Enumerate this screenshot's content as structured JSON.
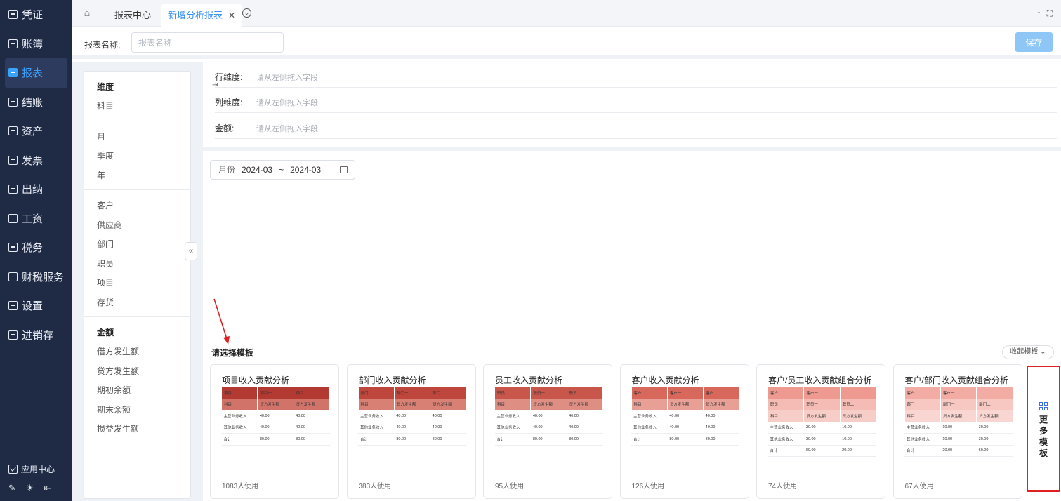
{
  "sidebar": {
    "items": [
      {
        "label": "凭证",
        "icon": "voucher-icon"
      },
      {
        "label": "账簿",
        "icon": "ledger-icon"
      },
      {
        "label": "报表",
        "icon": "report-icon",
        "active": true
      },
      {
        "label": "结账",
        "icon": "closing-icon"
      },
      {
        "label": "资产",
        "icon": "asset-icon"
      },
      {
        "label": "发票",
        "icon": "invoice-icon"
      },
      {
        "label": "出纳",
        "icon": "cashier-icon"
      },
      {
        "label": "工资",
        "icon": "salary-icon"
      },
      {
        "label": "税务",
        "icon": "tax-icon"
      },
      {
        "label": "财税服务",
        "icon": "finance-service-icon"
      },
      {
        "label": "设置",
        "icon": "settings-icon"
      },
      {
        "label": "进销存",
        "icon": "inventory-icon"
      }
    ],
    "app_center": "应用中心"
  },
  "tabs": [
    {
      "label": "报表中心"
    },
    {
      "label": "新增分析报表",
      "active": true
    }
  ],
  "report_name": {
    "label": "报表名称:",
    "placeholder": "报表名称"
  },
  "save_label": "保存",
  "field_panel": {
    "dim_head": "维度",
    "dim_items": [
      "科目"
    ],
    "time_items": [
      "月",
      "季度",
      "年"
    ],
    "aux_items": [
      "客户",
      "供应商",
      "部门",
      "职员",
      "项目",
      "存货"
    ],
    "amount_head": "金额",
    "amount_items": [
      "借方发生额",
      "贷方发生额",
      "期初余额",
      "期末余额",
      "损益发生额"
    ]
  },
  "dimensions": {
    "row_label": "行维度:",
    "col_label": "列维度:",
    "amount_label": "金额:",
    "hint": "请从左侧拖入字段"
  },
  "date_filter": {
    "label": "月份",
    "start": "2024-03",
    "sep": "~",
    "end": "2024-03"
  },
  "templates": {
    "title": "请选择模板",
    "collapse_label": "收起模板",
    "more_label": "更多模板",
    "cards": [
      {
        "title": "项目收入贡献分析",
        "usage": "1083人使用",
        "header": [
          [
            "项目",
            "项目一",
            "项目二"
          ],
          [
            "科目",
            "贷方发生额",
            "贷方发生额"
          ]
        ],
        "rows": [
          [
            "主营业务收入",
            "40.00",
            "40.00"
          ],
          [
            "其他业务收入",
            "40.00",
            "40.00"
          ],
          [
            "合计",
            "80.00",
            "80.00"
          ]
        ],
        "colors": [
          "#b33a32",
          "#d2736a"
        ]
      },
      {
        "title": "部门收入贡献分析",
        "usage": "383人使用",
        "header": [
          [
            "部门",
            "部门一",
            "部门二"
          ],
          [
            "科目",
            "贷方发生额",
            "贷方发生额"
          ]
        ],
        "rows": [
          [
            "主营业务收入",
            "40.00",
            "40.00"
          ],
          [
            "其他业务收入",
            "40.00",
            "40.00"
          ],
          [
            "合计",
            "80.00",
            "80.00"
          ]
        ],
        "colors": [
          "#bf463c",
          "#d98075"
        ]
      },
      {
        "title": "员工收入贡献分析",
        "usage": "95人使用",
        "header": [
          [
            "职员",
            "职员一",
            "职员二"
          ],
          [
            "科目",
            "贷方发生额",
            "贷方发生额"
          ]
        ],
        "rows": [
          [
            "主营业务收入",
            "40.00",
            "40.00"
          ],
          [
            "其他业务收入",
            "40.00",
            "40.00"
          ],
          [
            "合计",
            "80.00",
            "80.00"
          ]
        ],
        "colors": [
          "#c9564a",
          "#de8e83"
        ]
      },
      {
        "title": "客户收入贡献分析",
        "usage": "126人使用",
        "header": [
          [
            "客户",
            "客户一",
            "客户二"
          ],
          [
            "科目",
            "贷方发生额",
            "贷方发生额"
          ]
        ],
        "rows": [
          [
            "主营业务收入",
            "40.00",
            "40.00"
          ],
          [
            "其他业务收入",
            "40.00",
            "40.00"
          ],
          [
            "合计",
            "80.00",
            "80.00"
          ]
        ],
        "colors": [
          "#d8685c",
          "#e8a096"
        ]
      },
      {
        "title": "客户/员工收入贡献组合分析",
        "usage": "74人使用",
        "header": [
          [
            "客户",
            "客户一",
            ""
          ],
          [
            "职员",
            "职员一",
            "职员二"
          ],
          [
            "科目",
            "贷方发生额",
            "贷方发生额"
          ]
        ],
        "rows": [
          [
            "主营业务收入",
            "30.00",
            "10.00"
          ],
          [
            "其他业务收入",
            "30.00",
            "10.00"
          ],
          [
            "合计",
            "60.00",
            "20.00"
          ]
        ],
        "colors": [
          "#ee9a90",
          "#f4bcb4",
          "#f7cdc7"
        ]
      },
      {
        "title": "客户/部门收入贡献组合分析",
        "usage": "67人使用",
        "header": [
          [
            "客户",
            "客户一",
            ""
          ],
          [
            "部门",
            "部门一",
            "部门二"
          ],
          [
            "科目",
            "贷方发生额",
            "贷方发生额"
          ]
        ],
        "rows": [
          [
            "主营业务收入",
            "10.00",
            "30.00"
          ],
          [
            "其他业务收入",
            "10.00",
            "30.00"
          ],
          [
            "合计",
            "20.00",
            "60.00"
          ]
        ],
        "colors": [
          "#f3aca3",
          "#f7c8c1",
          "#f9d6d1"
        ]
      }
    ]
  }
}
